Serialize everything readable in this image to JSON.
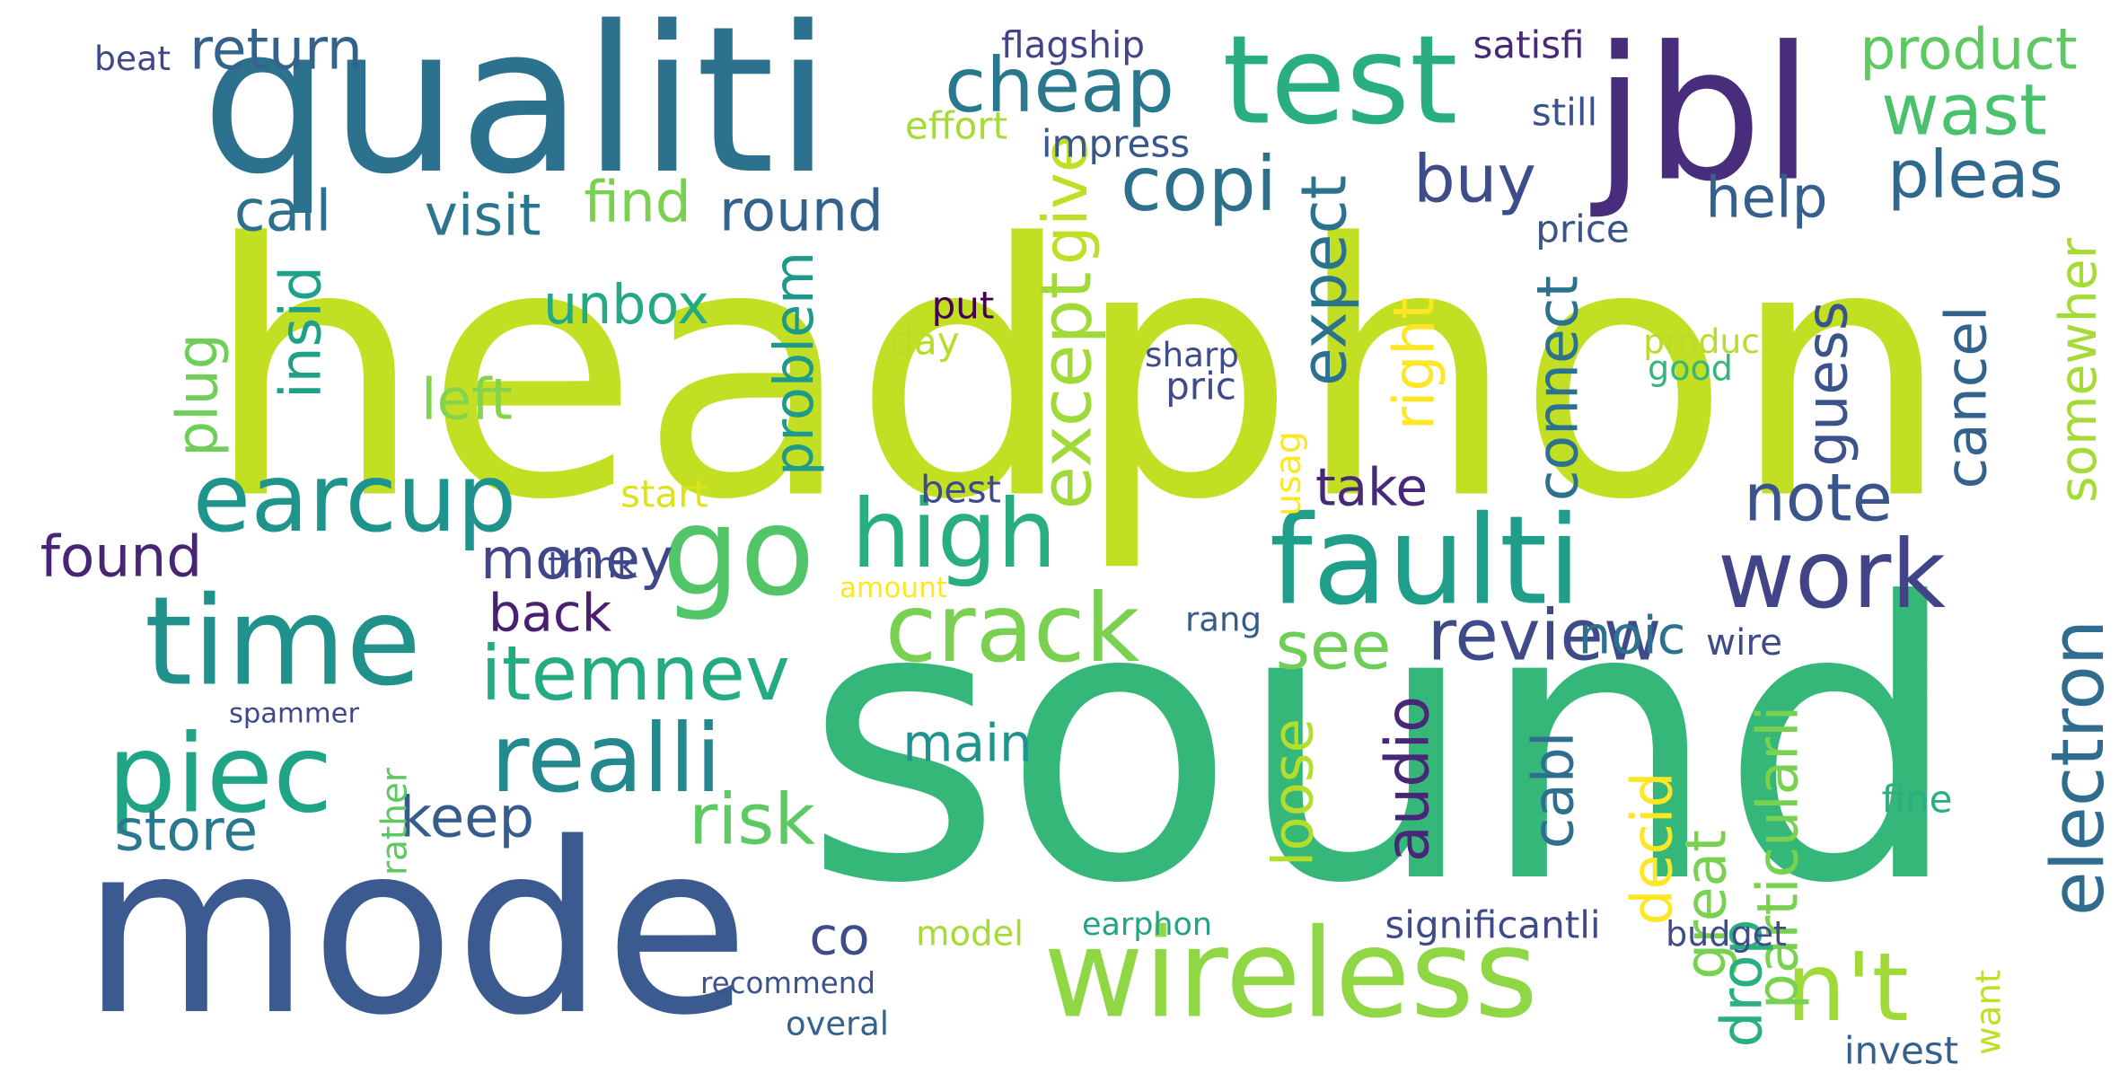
{
  "words": [
    {
      "text": "headphon",
      "color": "#c2df23"
    },
    {
      "text": "sound",
      "color": "#35b779"
    },
    {
      "text": "mode",
      "color": "#3b5a8f"
    },
    {
      "text": "qualiti",
      "color": "#2c728e"
    },
    {
      "text": "jbl",
      "color": "#472d7b"
    },
    {
      "text": "test",
      "color": "#29af7f"
    },
    {
      "text": "wireless",
      "color": "#8fd744"
    },
    {
      "text": "time",
      "color": "#21918c"
    },
    {
      "text": "go",
      "color": "#52c569"
    },
    {
      "text": "faulti",
      "color": "#1f9e89"
    },
    {
      "text": "earcup",
      "color": "#1f948c"
    },
    {
      "text": "piec",
      "color": "#20a486"
    },
    {
      "text": "work",
      "color": "#414487"
    },
    {
      "text": "crack",
      "color": "#7ad151"
    },
    {
      "text": "realli",
      "color": "#23898e"
    },
    {
      "text": "high",
      "color": "#28ae80"
    },
    {
      "text": "n't",
      "color": "#a0da39"
    },
    {
      "text": "cheap",
      "color": "#2a788e"
    },
    {
      "text": "copi",
      "color": "#2d708e"
    },
    {
      "text": "itemnev",
      "color": "#25ab82"
    },
    {
      "text": "review",
      "color": "#3e4a89"
    },
    {
      "text": "risk",
      "color": "#5ec962"
    },
    {
      "text": "money",
      "color": "#404688"
    },
    {
      "text": "electron",
      "color": "#2f6c8e"
    },
    {
      "text": "buy",
      "color": "#3e4c8a"
    },
    {
      "text": "pleas",
      "color": "#31688e"
    },
    {
      "text": "wast",
      "color": "#4ac16d"
    },
    {
      "text": "note",
      "color": "#3a548c"
    },
    {
      "text": "see",
      "color": "#6ece58"
    },
    {
      "text": "product",
      "color": "#5ec962"
    },
    {
      "text": "return",
      "color": "#33638d"
    },
    {
      "text": "round",
      "color": "#33628d"
    },
    {
      "text": "visit",
      "color": "#2b758e"
    },
    {
      "text": "call",
      "color": "#2d708e"
    },
    {
      "text": "find",
      "color": "#7ad151"
    },
    {
      "text": "give",
      "color": "#bddf26"
    },
    {
      "text": "except",
      "color": "#a0da39"
    },
    {
      "text": "expect",
      "color": "#2c728e"
    },
    {
      "text": "unbox",
      "color": "#23a983"
    },
    {
      "text": "insid",
      "color": "#1fa088"
    },
    {
      "text": "left",
      "color": "#84d44b"
    },
    {
      "text": "plug",
      "color": "#6ece58"
    },
    {
      "text": "problem",
      "color": "#1f9a8a"
    },
    {
      "text": "right",
      "color": "#fde725"
    },
    {
      "text": "connect",
      "color": "#2c718e"
    },
    {
      "text": "help",
      "color": "#355f8d"
    },
    {
      "text": "guess",
      "color": "#3b528b"
    },
    {
      "text": "cancel",
      "color": "#33638d"
    },
    {
      "text": "somewher",
      "color": "#a5db36"
    },
    {
      "text": "take",
      "color": "#482878"
    },
    {
      "text": "found",
      "color": "#482475"
    },
    {
      "text": "back",
      "color": "#481f71"
    },
    {
      "text": "keep",
      "color": "#365c8d"
    },
    {
      "text": "store",
      "color": "#2a788e"
    },
    {
      "text": "main",
      "color": "#1f948c"
    },
    {
      "text": "loose",
      "color": "#b5de2b"
    },
    {
      "text": "audio",
      "color": "#482777"
    },
    {
      "text": "cabl",
      "color": "#2e6e8e"
    },
    {
      "text": "noic",
      "color": "#2c728e"
    },
    {
      "text": "decid",
      "color": "#fde725"
    },
    {
      "text": "great",
      "color": "#7ad151"
    },
    {
      "text": "particularli",
      "color": "#7ad151"
    },
    {
      "text": "drop",
      "color": "#2ab07f"
    },
    {
      "text": "co",
      "color": "#3e4c8a"
    },
    {
      "text": "flagship",
      "color": "#414487"
    },
    {
      "text": "satisfi",
      "color": "#482878"
    },
    {
      "text": "beat",
      "color": "#3f4788"
    },
    {
      "text": "effort",
      "color": "#a5db36"
    },
    {
      "text": "impress",
      "color": "#39568c"
    },
    {
      "text": "still",
      "color": "#3b528b"
    },
    {
      "text": "price",
      "color": "#3b528b"
    },
    {
      "text": "put",
      "color": "#440154"
    },
    {
      "text": "day",
      "color": "#b5de2b"
    },
    {
      "text": "sharp",
      "color": "#3e4c8a"
    },
    {
      "text": "pric",
      "color": "#3e4a89"
    },
    {
      "text": "produc",
      "color": "#b5de2b"
    },
    {
      "text": "good",
      "color": "#35b779"
    },
    {
      "text": "start",
      "color": "#dde318"
    },
    {
      "text": "best",
      "color": "#3e4c8a"
    },
    {
      "text": "usag",
      "color": "#fde725"
    },
    {
      "text": "think",
      "color": "#3e4a89"
    },
    {
      "text": "amount",
      "color": "#fde725"
    },
    {
      "text": "rang",
      "color": "#365c8d"
    },
    {
      "text": "wire",
      "color": "#3e4a89"
    },
    {
      "text": "spammer",
      "color": "#3e4989"
    },
    {
      "text": "rather",
      "color": "#5ec962"
    },
    {
      "text": "fine",
      "color": "#2ab07f"
    },
    {
      "text": "model",
      "color": "#a5db36"
    },
    {
      "text": "earphon",
      "color": "#20a486"
    },
    {
      "text": "significantli",
      "color": "#3e4a89"
    },
    {
      "text": "budget",
      "color": "#3e4c8a"
    },
    {
      "text": "recommend",
      "color": "#3b528b"
    },
    {
      "text": "overal",
      "color": "#34618d"
    },
    {
      "text": "want",
      "color": "#bddf26"
    },
    {
      "text": "invest",
      "color": "#355f8d"
    }
  ]
}
